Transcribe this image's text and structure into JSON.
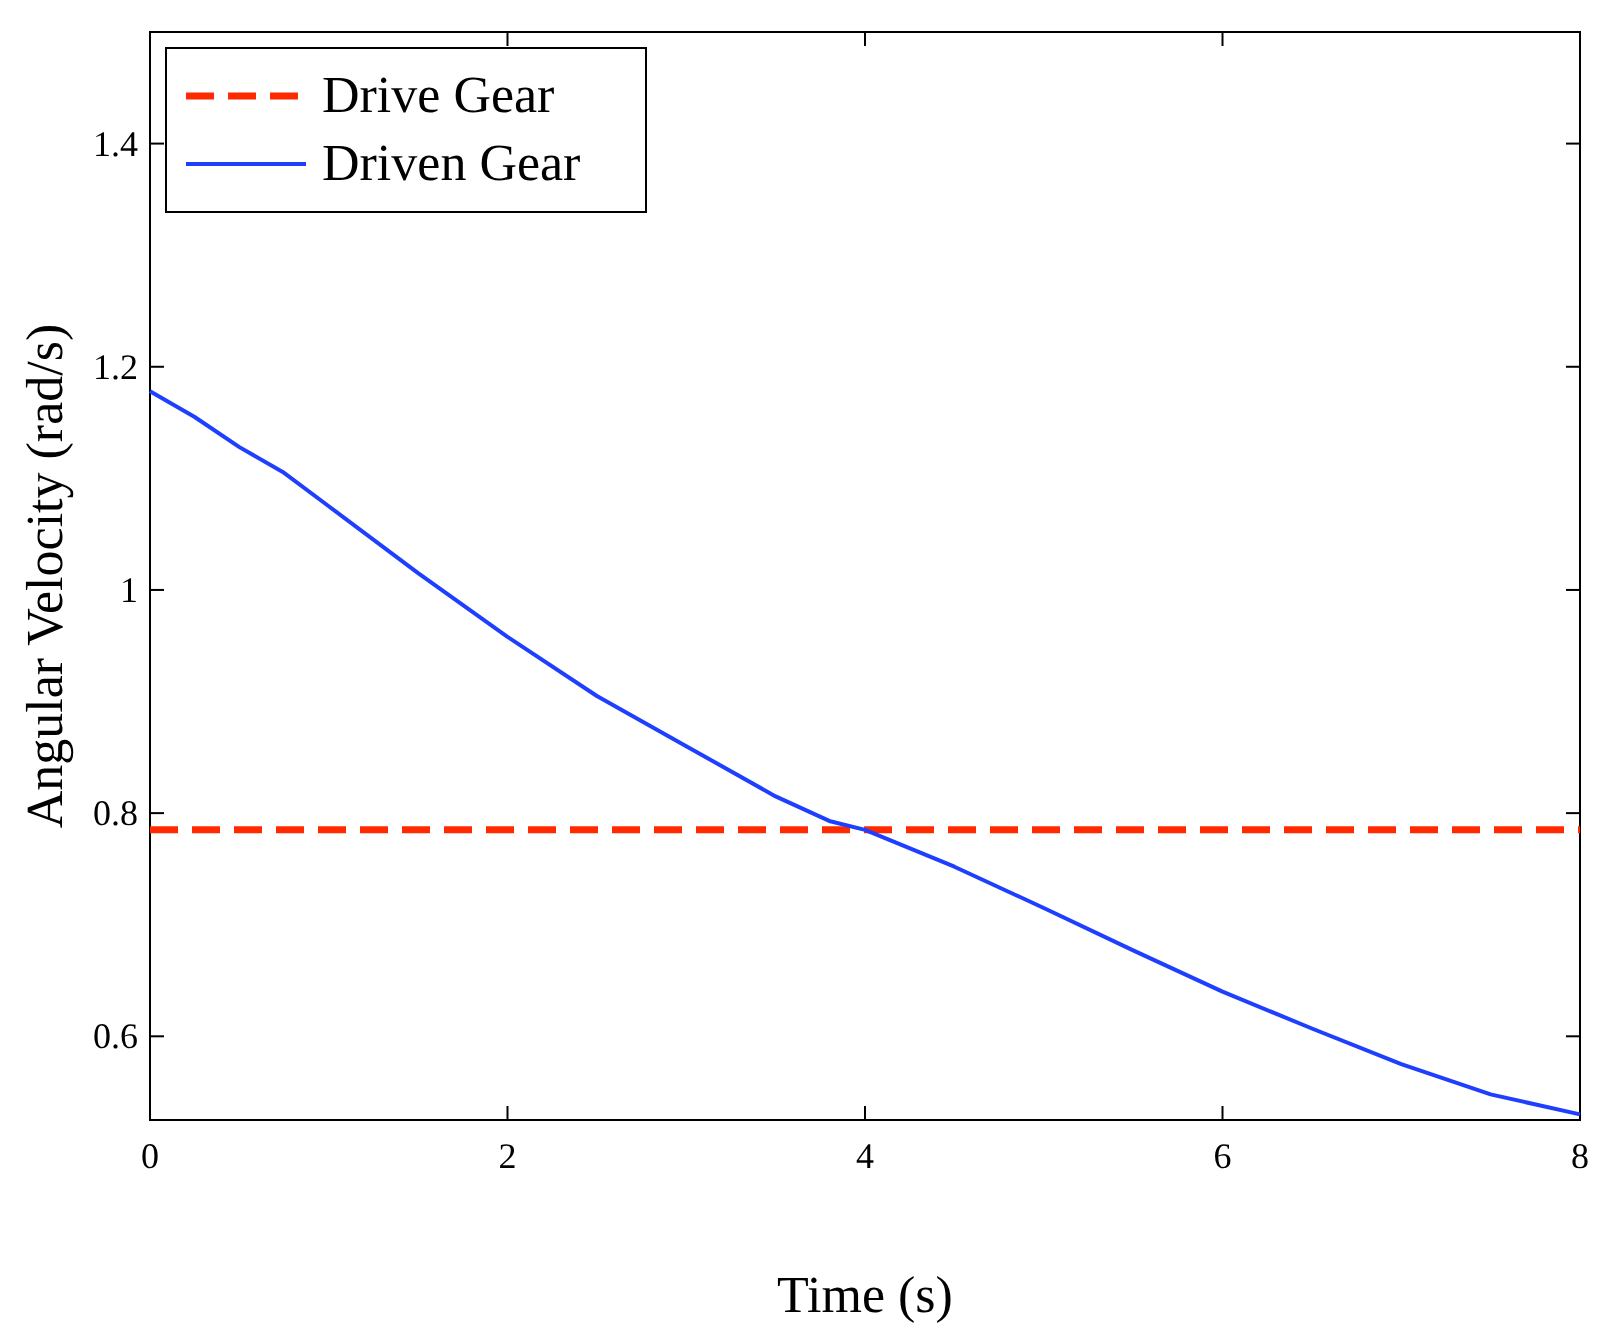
{
  "chart_data": {
    "type": "line",
    "xlabel": "Time (s)",
    "ylabel": "Angular Velocity (rad/s)",
    "xlim": [
      0,
      8
    ],
    "ylim": [
      0.525,
      1.5
    ],
    "xticks": [
      0,
      2,
      4,
      6,
      8
    ],
    "yticks": [
      0.6,
      0.8,
      1,
      1.2,
      1.4
    ],
    "grid": false,
    "legend": "top left",
    "marker": "none",
    "series": [
      {
        "name": "Drive Gear",
        "color": "#ff2a00",
        "line_style": "dashed",
        "x": [
          0,
          8
        ],
        "values": [
          0.785,
          0.785
        ]
      },
      {
        "name": "Driven Gear",
        "color": "#1f3fff",
        "line_style": "solid",
        "x": [
          0,
          0.25,
          0.5,
          0.75,
          1,
          1.5,
          2,
          2.5,
          3,
          3.5,
          3.8,
          4,
          4.5,
          5,
          5.5,
          6,
          6.5,
          7,
          7.5,
          8
        ],
        "values": [
          1.178,
          1.155,
          1.128,
          1.105,
          1.075,
          1.015,
          0.958,
          0.905,
          0.86,
          0.815,
          0.793,
          0.785,
          0.752,
          0.715,
          0.677,
          0.64,
          0.607,
          0.575,
          0.548,
          0.53
        ]
      }
    ]
  }
}
